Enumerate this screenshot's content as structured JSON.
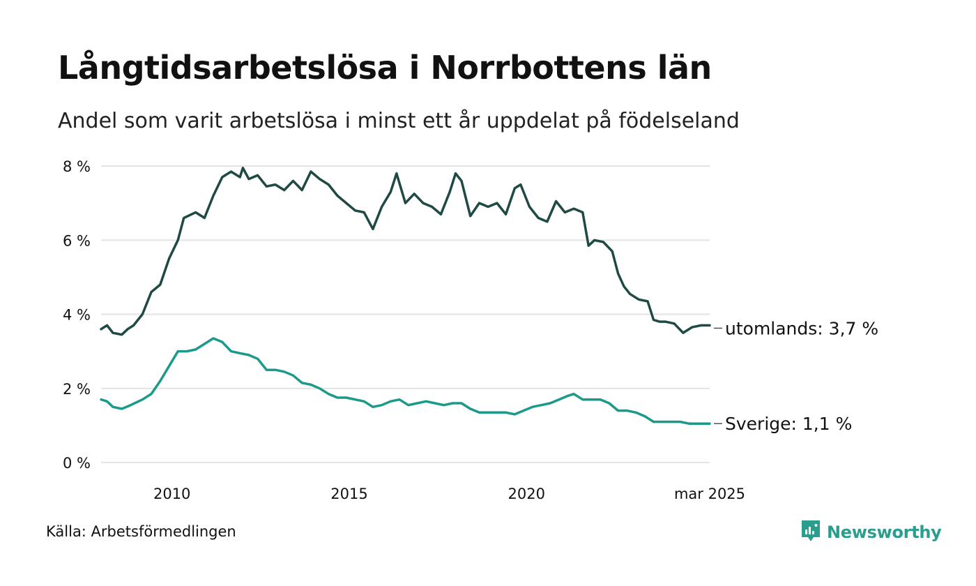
{
  "header": {
    "title": "Långtidsarbetslösa i Norrbottens län",
    "subtitle": "Andel som varit arbetslösa i minst ett år uppdelat på födelseland"
  },
  "footer": {
    "source": "Källa: Arbetsförmedlingen",
    "brand": "Newsworthy"
  },
  "colors": {
    "utomlands": "#1f4a43",
    "sverige": "#1b9a8a",
    "grid": "#e3e3e3",
    "text": "#111111",
    "brand": "#2a9d8f"
  },
  "icons": {
    "brand_logo": "newsworthy-logo-icon"
  },
  "chart_data": {
    "type": "line",
    "title": "Långtidsarbetslösa i Norrbottens län",
    "subtitle": "Andel som varit arbetslösa i minst ett år uppdelat på födelseland",
    "xlabel": "",
    "ylabel": "",
    "ylim": [
      0,
      8
    ],
    "y_ticks": [
      0,
      2,
      4,
      6,
      8
    ],
    "y_tick_labels": [
      "0 %",
      "2 %",
      "4 %",
      "6 %",
      "8 %"
    ],
    "x_ticks": [
      {
        "x": "2010-01",
        "label": "2010"
      },
      {
        "x": "2015-01",
        "label": "2015"
      },
      {
        "x": "2020-01",
        "label": "2020"
      },
      {
        "x": "2025-03",
        "label": "mar 2025"
      }
    ],
    "x_range": [
      "2008-01",
      "2025-03"
    ],
    "grid": true,
    "legend": "direct labels at line ends",
    "series": [
      {
        "name": "utomlands",
        "end_label": "utomlands: 3,7 %",
        "points": [
          [
            "2008-01",
            3.6
          ],
          [
            "2008-03",
            3.7
          ],
          [
            "2008-05",
            3.5
          ],
          [
            "2008-08",
            3.45
          ],
          [
            "2008-10",
            3.6
          ],
          [
            "2008-12",
            3.7
          ],
          [
            "2009-03",
            4.0
          ],
          [
            "2009-06",
            4.6
          ],
          [
            "2009-09",
            4.8
          ],
          [
            "2009-12",
            5.5
          ],
          [
            "2010-03",
            6.0
          ],
          [
            "2010-05",
            6.6
          ],
          [
            "2010-09",
            6.75
          ],
          [
            "2010-12",
            6.6
          ],
          [
            "2011-03",
            7.2
          ],
          [
            "2011-06",
            7.7
          ],
          [
            "2011-09",
            7.85
          ],
          [
            "2011-12",
            7.7
          ],
          [
            "2012-01",
            7.95
          ],
          [
            "2012-03",
            7.65
          ],
          [
            "2012-06",
            7.75
          ],
          [
            "2012-09",
            7.45
          ],
          [
            "2012-12",
            7.5
          ],
          [
            "2013-03",
            7.35
          ],
          [
            "2013-06",
            7.6
          ],
          [
            "2013-09",
            7.35
          ],
          [
            "2013-12",
            7.85
          ],
          [
            "2014-03",
            7.65
          ],
          [
            "2014-06",
            7.5
          ],
          [
            "2014-09",
            7.2
          ],
          [
            "2014-12",
            7.0
          ],
          [
            "2015-03",
            6.8
          ],
          [
            "2015-06",
            6.75
          ],
          [
            "2015-09",
            6.3
          ],
          [
            "2015-12",
            6.9
          ],
          [
            "2016-03",
            7.3
          ],
          [
            "2016-05",
            7.8
          ],
          [
            "2016-08",
            7.0
          ],
          [
            "2016-11",
            7.25
          ],
          [
            "2017-02",
            7.0
          ],
          [
            "2017-05",
            6.9
          ],
          [
            "2017-08",
            6.7
          ],
          [
            "2017-11",
            7.3
          ],
          [
            "2018-01",
            7.8
          ],
          [
            "2018-03",
            7.6
          ],
          [
            "2018-06",
            6.65
          ],
          [
            "2018-09",
            7.0
          ],
          [
            "2018-12",
            6.9
          ],
          [
            "2019-03",
            7.0
          ],
          [
            "2019-06",
            6.7
          ],
          [
            "2019-09",
            7.4
          ],
          [
            "2019-11",
            7.5
          ],
          [
            "2020-02",
            6.9
          ],
          [
            "2020-05",
            6.6
          ],
          [
            "2020-08",
            6.5
          ],
          [
            "2020-11",
            7.05
          ],
          [
            "2021-02",
            6.75
          ],
          [
            "2021-05",
            6.85
          ],
          [
            "2021-08",
            6.75
          ],
          [
            "2021-10",
            5.85
          ],
          [
            "2021-12",
            6.0
          ],
          [
            "2022-03",
            5.95
          ],
          [
            "2022-06",
            5.7
          ],
          [
            "2022-08",
            5.1
          ],
          [
            "2022-10",
            4.75
          ],
          [
            "2022-12",
            4.55
          ],
          [
            "2023-03",
            4.4
          ],
          [
            "2023-06",
            4.35
          ],
          [
            "2023-08",
            3.85
          ],
          [
            "2023-10",
            3.8
          ],
          [
            "2023-12",
            3.8
          ],
          [
            "2024-03",
            3.75
          ],
          [
            "2024-06",
            3.5
          ],
          [
            "2024-09",
            3.65
          ],
          [
            "2024-12",
            3.7
          ],
          [
            "2025-03",
            3.7
          ]
        ]
      },
      {
        "name": "Sverige",
        "end_label": "Sverige: 1,1 %",
        "points": [
          [
            "2008-01",
            1.7
          ],
          [
            "2008-03",
            1.65
          ],
          [
            "2008-05",
            1.5
          ],
          [
            "2008-08",
            1.45
          ],
          [
            "2008-11",
            1.55
          ],
          [
            "2009-03",
            1.7
          ],
          [
            "2009-06",
            1.85
          ],
          [
            "2009-09",
            2.2
          ],
          [
            "2009-12",
            2.6
          ],
          [
            "2010-03",
            3.0
          ],
          [
            "2010-06",
            3.0
          ],
          [
            "2010-09",
            3.05
          ],
          [
            "2010-12",
            3.2
          ],
          [
            "2011-03",
            3.35
          ],
          [
            "2011-06",
            3.25
          ],
          [
            "2011-09",
            3.0
          ],
          [
            "2011-12",
            2.95
          ],
          [
            "2012-03",
            2.9
          ],
          [
            "2012-06",
            2.8
          ],
          [
            "2012-09",
            2.5
          ],
          [
            "2012-12",
            2.5
          ],
          [
            "2013-03",
            2.45
          ],
          [
            "2013-06",
            2.35
          ],
          [
            "2013-09",
            2.15
          ],
          [
            "2013-12",
            2.1
          ],
          [
            "2014-03",
            2.0
          ],
          [
            "2014-06",
            1.85
          ],
          [
            "2014-09",
            1.75
          ],
          [
            "2014-12",
            1.75
          ],
          [
            "2015-03",
            1.7
          ],
          [
            "2015-06",
            1.65
          ],
          [
            "2015-09",
            1.5
          ],
          [
            "2015-12",
            1.55
          ],
          [
            "2016-03",
            1.65
          ],
          [
            "2016-06",
            1.7
          ],
          [
            "2016-09",
            1.55
          ],
          [
            "2016-12",
            1.6
          ],
          [
            "2017-03",
            1.65
          ],
          [
            "2017-06",
            1.6
          ],
          [
            "2017-09",
            1.55
          ],
          [
            "2017-12",
            1.6
          ],
          [
            "2018-03",
            1.6
          ],
          [
            "2018-06",
            1.45
          ],
          [
            "2018-09",
            1.35
          ],
          [
            "2018-12",
            1.35
          ],
          [
            "2019-03",
            1.35
          ],
          [
            "2019-06",
            1.35
          ],
          [
            "2019-09",
            1.3
          ],
          [
            "2019-12",
            1.4
          ],
          [
            "2020-03",
            1.5
          ],
          [
            "2020-06",
            1.55
          ],
          [
            "2020-09",
            1.6
          ],
          [
            "2020-12",
            1.7
          ],
          [
            "2021-03",
            1.8
          ],
          [
            "2021-05",
            1.85
          ],
          [
            "2021-08",
            1.7
          ],
          [
            "2021-11",
            1.7
          ],
          [
            "2022-02",
            1.7
          ],
          [
            "2022-05",
            1.6
          ],
          [
            "2022-08",
            1.4
          ],
          [
            "2022-11",
            1.4
          ],
          [
            "2023-02",
            1.35
          ],
          [
            "2023-05",
            1.25
          ],
          [
            "2023-08",
            1.1
          ],
          [
            "2023-11",
            1.1
          ],
          [
            "2024-02",
            1.1
          ],
          [
            "2024-05",
            1.1
          ],
          [
            "2024-08",
            1.05
          ],
          [
            "2024-11",
            1.05
          ],
          [
            "2025-03",
            1.05
          ]
        ]
      }
    ]
  }
}
